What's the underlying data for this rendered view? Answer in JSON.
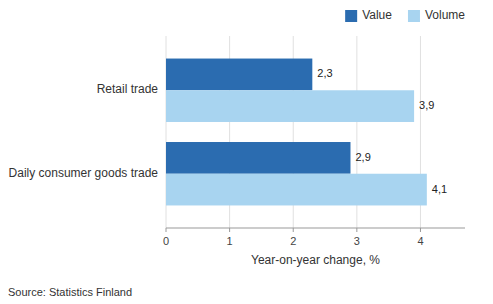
{
  "chart_data": {
    "type": "bar",
    "orientation": "horizontal",
    "categories": [
      "Daily consumer goods trade",
      "Retail trade"
    ],
    "series": [
      {
        "name": "Value",
        "color": "#2B6CB0",
        "values": [
          2.9,
          2.3
        ],
        "value_labels": [
          "2,9",
          "2,3"
        ]
      },
      {
        "name": "Volume",
        "color": "#A8D4F0",
        "values": [
          4.1,
          3.9
        ],
        "value_labels": [
          "4,1",
          "3,9"
        ]
      }
    ],
    "xlabel": "Year-on-year change, %",
    "xlim": [
      0,
      4.7
    ],
    "xticks": [
      0,
      1,
      2,
      3,
      4
    ],
    "grid": true,
    "legend": "upper right",
    "data_labels": true,
    "source": "Source: Statistics Finland"
  }
}
